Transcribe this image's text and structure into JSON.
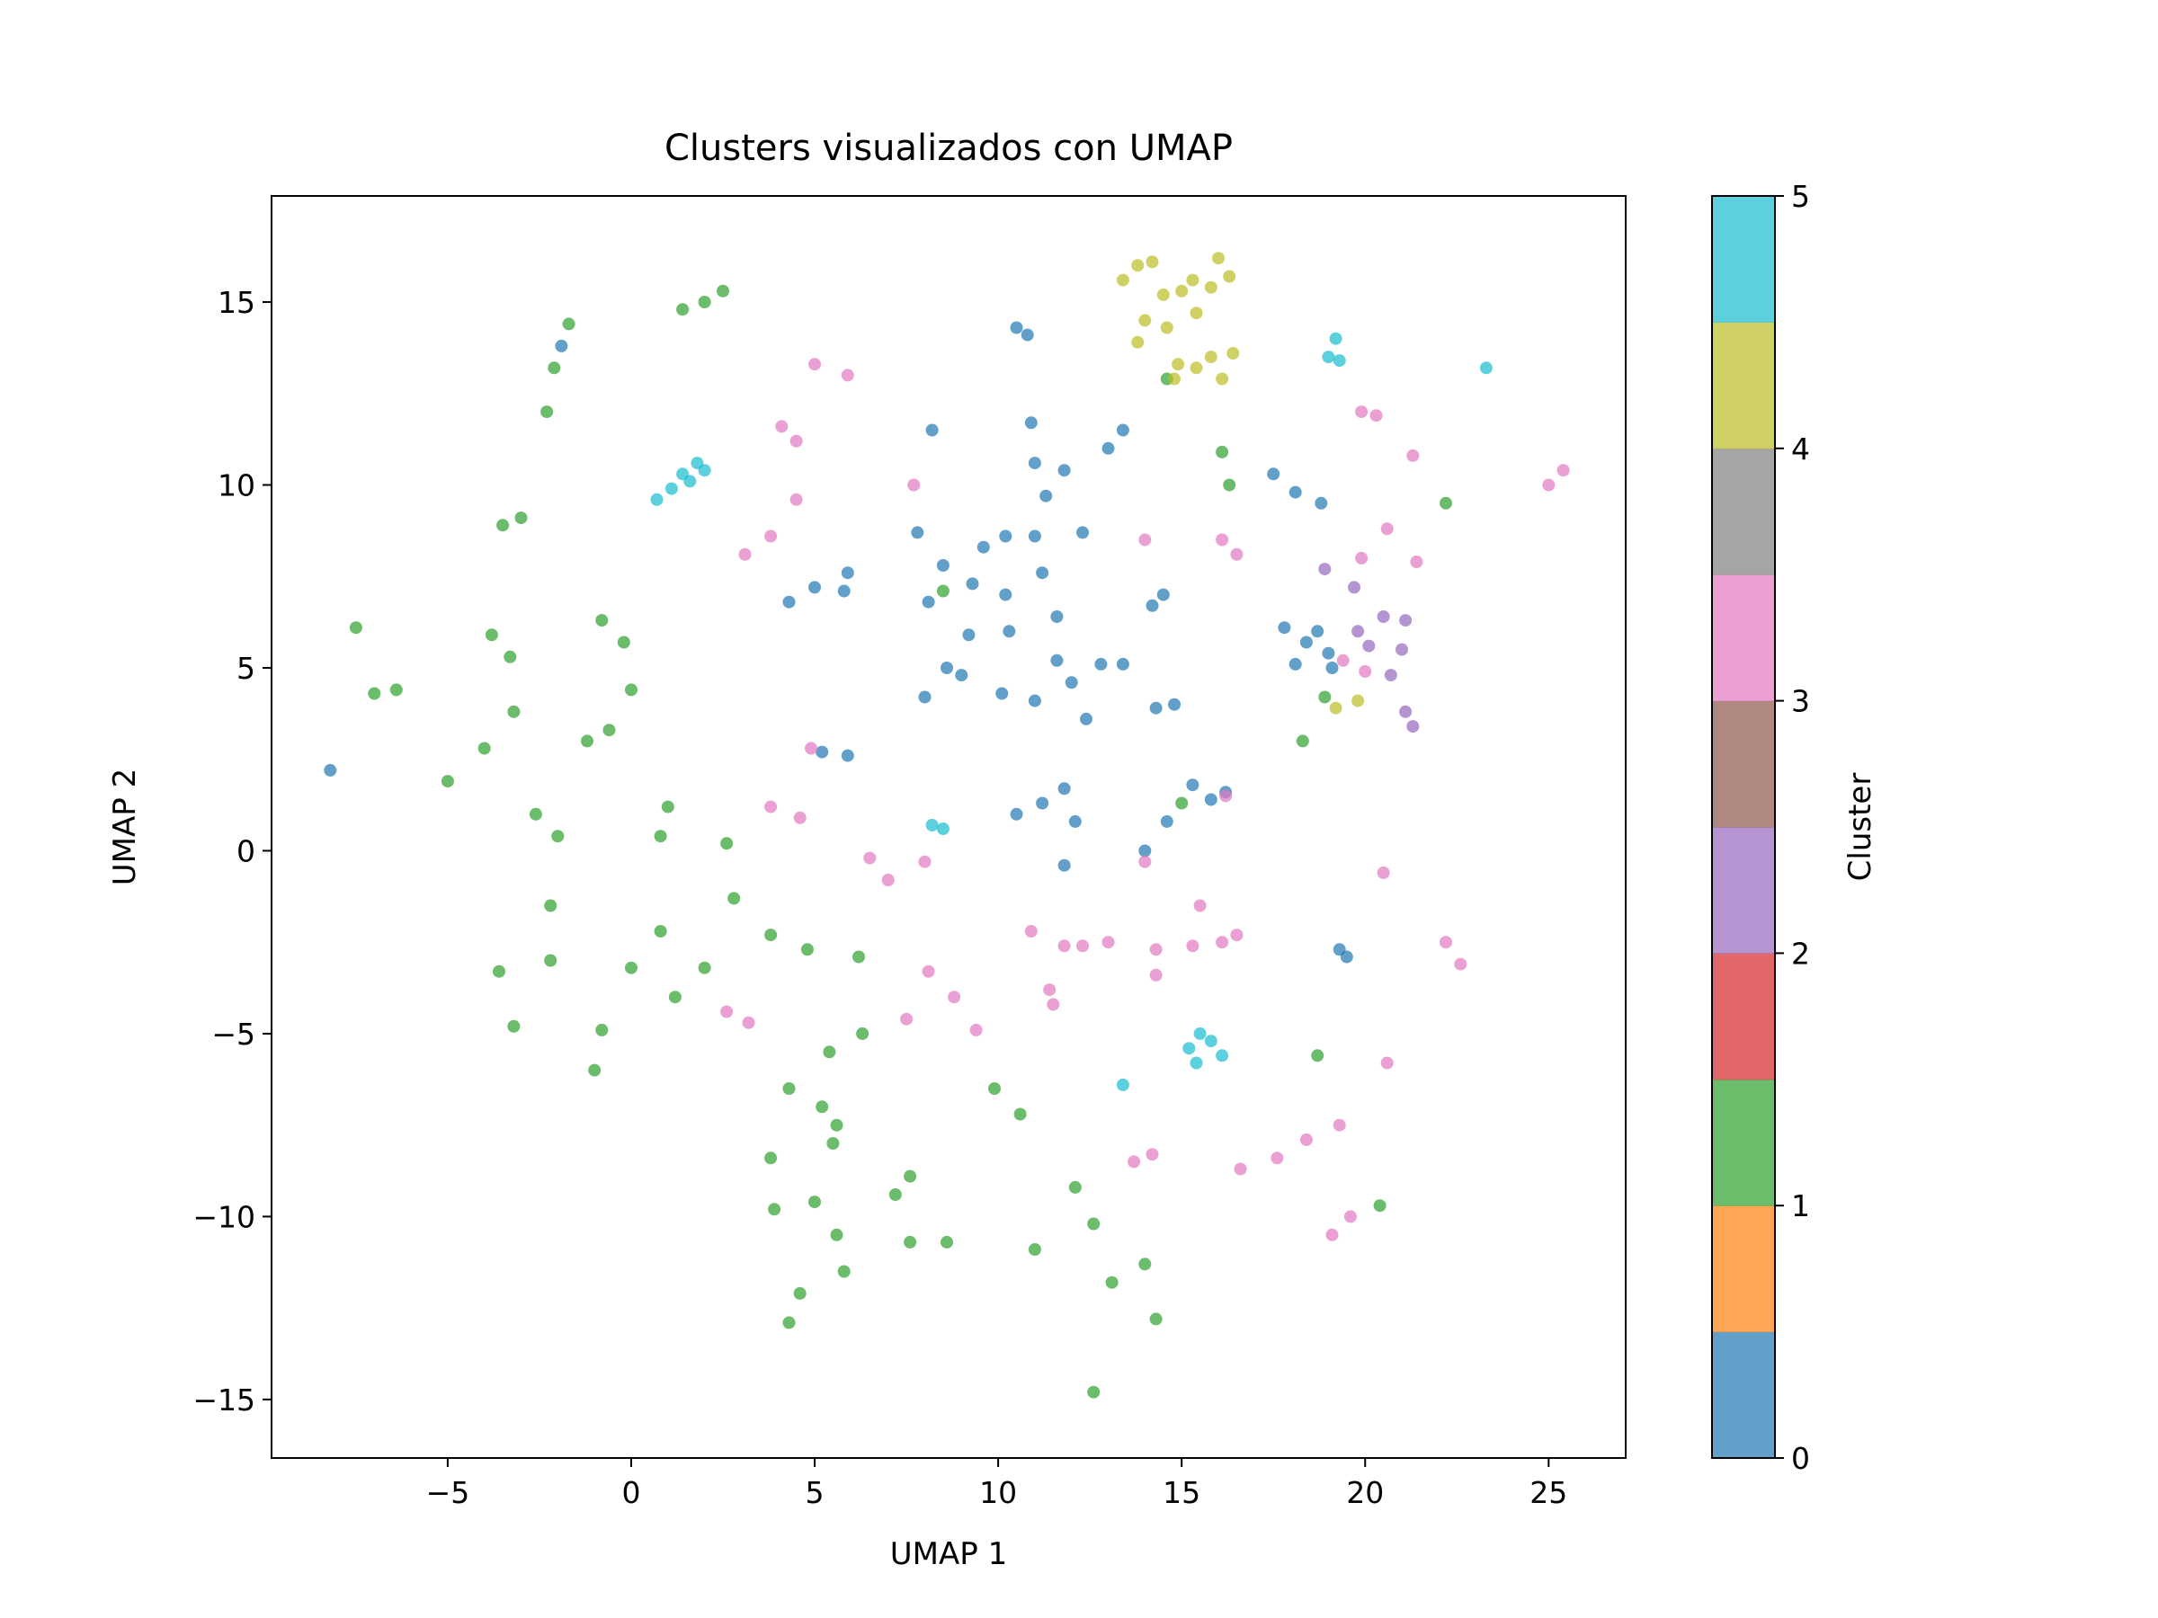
{
  "chart_data": {
    "type": "scatter",
    "title": "Clusters visualizados con UMAP",
    "xlabel": "UMAP 1",
    "ylabel": "UMAP 2",
    "xlim": [
      -9.8,
      27.1
    ],
    "ylim": [
      -16.6,
      17.9
    ],
    "xticks": [
      -5,
      0,
      5,
      10,
      15,
      20,
      25
    ],
    "yticks": [
      -15,
      -10,
      -5,
      0,
      5,
      10,
      15
    ],
    "xtick_labels": [
      "−5",
      "0",
      "5",
      "10",
      "15",
      "20",
      "25"
    ],
    "ytick_labels": [
      "−15",
      "−10",
      "−5",
      "0",
      "5",
      "10",
      "15"
    ],
    "grid": false,
    "point_alpha": 0.7,
    "colorbar": {
      "label": "Cluster",
      "range": [
        0,
        5
      ],
      "ticks": [
        0,
        1,
        2,
        3,
        4,
        5
      ],
      "tick_labels": [
        "0",
        "1",
        "2",
        "3",
        "4",
        "5"
      ],
      "colors": [
        "#1f77b4",
        "#ff7f0e",
        "#2ca02c",
        "#d62728",
        "#9467bd",
        "#8c564b",
        "#e377c2",
        "#7f7f7f",
        "#bcbd22",
        "#17becf"
      ]
    },
    "series": [
      {
        "cluster": 0,
        "color": "#1f77b4",
        "values": [
          [
            -8.2,
            2.2
          ],
          [
            -1.9,
            13.8
          ],
          [
            8.0,
            4.2
          ],
          [
            8.6,
            5.0
          ],
          [
            9.2,
            5.9
          ],
          [
            8.1,
            6.8
          ],
          [
            8.5,
            7.8
          ],
          [
            9.6,
            8.3
          ],
          [
            10.2,
            8.6
          ],
          [
            11.0,
            8.6
          ],
          [
            12.3,
            8.7
          ],
          [
            11.2,
            7.6
          ],
          [
            11.6,
            6.4
          ],
          [
            10.3,
            6.0
          ],
          [
            9.0,
            4.8
          ],
          [
            10.2,
            7.0
          ],
          [
            9.3,
            7.3
          ],
          [
            11.3,
            9.7
          ],
          [
            11.0,
            10.6
          ],
          [
            10.9,
            11.7
          ],
          [
            11.8,
            10.4
          ],
          [
            13.0,
            11.0
          ],
          [
            13.4,
            11.5
          ],
          [
            8.2,
            11.5
          ],
          [
            7.8,
            8.7
          ],
          [
            10.5,
            14.3
          ],
          [
            10.8,
            14.1
          ],
          [
            4.3,
            6.8
          ],
          [
            5.0,
            7.2
          ],
          [
            5.8,
            7.1
          ],
          [
            5.9,
            7.6
          ],
          [
            10.1,
            4.3
          ],
          [
            11.0,
            4.1
          ],
          [
            11.6,
            5.2
          ],
          [
            12.0,
            4.6
          ],
          [
            12.4,
            3.6
          ],
          [
            12.8,
            5.1
          ],
          [
            13.4,
            5.1
          ],
          [
            14.2,
            6.7
          ],
          [
            14.5,
            7.0
          ],
          [
            14.3,
            3.9
          ],
          [
            14.8,
            4.0
          ],
          [
            10.5,
            1.0
          ],
          [
            11.2,
            1.3
          ],
          [
            11.8,
            1.7
          ],
          [
            12.1,
            0.8
          ],
          [
            11.8,
            -0.4
          ],
          [
            5.2,
            2.7
          ],
          [
            5.9,
            2.6
          ],
          [
            14.0,
            0.0
          ],
          [
            14.6,
            0.8
          ],
          [
            15.3,
            1.8
          ],
          [
            16.2,
            1.6
          ],
          [
            15.8,
            1.4
          ],
          [
            17.8,
            6.1
          ],
          [
            18.4,
            5.7
          ],
          [
            19.0,
            5.4
          ],
          [
            18.1,
            5.1
          ],
          [
            18.7,
            6.0
          ],
          [
            17.5,
            10.3
          ],
          [
            18.1,
            9.8
          ],
          [
            18.8,
            9.5
          ],
          [
            19.1,
            5.0
          ],
          [
            19.3,
            -2.7
          ],
          [
            19.5,
            -2.9
          ]
        ]
      },
      {
        "cluster": 1,
        "color": "#2ca02c",
        "values": [
          [
            1.4,
            14.8
          ],
          [
            2.0,
            15.0
          ],
          [
            2.5,
            15.3
          ],
          [
            -1.7,
            14.4
          ],
          [
            -2.1,
            13.2
          ],
          [
            -2.3,
            12.0
          ],
          [
            -3.5,
            8.9
          ],
          [
            -3.0,
            9.1
          ],
          [
            -7.5,
            6.1
          ],
          [
            -7.0,
            4.3
          ],
          [
            -6.4,
            4.4
          ],
          [
            -3.8,
            5.9
          ],
          [
            -3.3,
            5.3
          ],
          [
            -5.0,
            1.9
          ],
          [
            -4.0,
            2.8
          ],
          [
            -3.2,
            3.8
          ],
          [
            -2.6,
            1.0
          ],
          [
            -2.0,
            0.4
          ],
          [
            -0.8,
            6.3
          ],
          [
            -0.2,
            5.7
          ],
          [
            0.0,
            4.4
          ],
          [
            -1.2,
            3.0
          ],
          [
            -0.6,
            3.3
          ],
          [
            1.0,
            1.2
          ],
          [
            0.8,
            0.4
          ],
          [
            2.6,
            0.2
          ],
          [
            2.8,
            -1.3
          ],
          [
            -2.2,
            -1.5
          ],
          [
            -2.2,
            -3.0
          ],
          [
            -3.6,
            -3.3
          ],
          [
            -3.2,
            -4.8
          ],
          [
            0.8,
            -2.2
          ],
          [
            0.0,
            -3.2
          ],
          [
            -0.8,
            -4.9
          ],
          [
            -1.0,
            -6.0
          ],
          [
            1.2,
            -4.0
          ],
          [
            2.0,
            -3.2
          ],
          [
            3.8,
            -2.3
          ],
          [
            4.8,
            -2.7
          ],
          [
            6.2,
            -2.9
          ],
          [
            4.3,
            -6.5
          ],
          [
            5.4,
            -5.5
          ],
          [
            6.3,
            -5.0
          ],
          [
            5.2,
            -7.0
          ],
          [
            5.6,
            -7.5
          ],
          [
            5.5,
            -8.0
          ],
          [
            3.8,
            -8.4
          ],
          [
            5.0,
            -9.6
          ],
          [
            3.9,
            -9.8
          ],
          [
            5.6,
            -10.5
          ],
          [
            5.8,
            -11.5
          ],
          [
            7.2,
            -9.4
          ],
          [
            7.6,
            -8.9
          ],
          [
            7.6,
            -10.7
          ],
          [
            8.6,
            -10.7
          ],
          [
            4.6,
            -12.1
          ],
          [
            4.3,
            -12.9
          ],
          [
            9.9,
            -6.5
          ],
          [
            10.6,
            -7.2
          ],
          [
            11.0,
            -10.9
          ],
          [
            12.1,
            -9.2
          ],
          [
            12.6,
            -10.2
          ],
          [
            13.1,
            -11.8
          ],
          [
            14.0,
            -11.3
          ],
          [
            14.3,
            -12.8
          ],
          [
            12.6,
            -14.8
          ],
          [
            14.6,
            12.9
          ],
          [
            16.1,
            10.9
          ],
          [
            16.3,
            10.0
          ],
          [
            18.3,
            3.0
          ],
          [
            18.9,
            4.2
          ],
          [
            22.2,
            9.5
          ],
          [
            18.7,
            -5.6
          ],
          [
            20.4,
            -9.7
          ],
          [
            15.0,
            1.3
          ],
          [
            8.5,
            7.1
          ]
        ]
      },
      {
        "cluster": 2,
        "color": "#9467bd",
        "values": [
          [
            18.9,
            7.7
          ],
          [
            19.7,
            7.2
          ],
          [
            20.5,
            6.4
          ],
          [
            20.1,
            5.6
          ],
          [
            21.0,
            5.5
          ],
          [
            20.7,
            4.8
          ],
          [
            21.1,
            3.8
          ],
          [
            21.3,
            3.4
          ],
          [
            19.8,
            6.0
          ],
          [
            21.1,
            6.3
          ]
        ]
      },
      {
        "cluster": 3,
        "color": "#e377c2",
        "values": [
          [
            5.0,
            13.3
          ],
          [
            5.9,
            13.0
          ],
          [
            4.1,
            11.6
          ],
          [
            4.5,
            11.2
          ],
          [
            3.1,
            8.1
          ],
          [
            3.8,
            8.6
          ],
          [
            4.5,
            9.6
          ],
          [
            7.7,
            10.0
          ],
          [
            3.8,
            1.2
          ],
          [
            4.6,
            0.9
          ],
          [
            4.9,
            2.8
          ],
          [
            6.5,
            -0.2
          ],
          [
            7.0,
            -0.8
          ],
          [
            8.0,
            -0.3
          ],
          [
            10.9,
            -2.2
          ],
          [
            11.8,
            -2.6
          ],
          [
            12.3,
            -2.6
          ],
          [
            11.4,
            -3.8
          ],
          [
            11.5,
            -4.2
          ],
          [
            13.0,
            -2.5
          ],
          [
            14.3,
            -2.7
          ],
          [
            14.3,
            -3.4
          ],
          [
            15.3,
            -2.6
          ],
          [
            16.1,
            -2.5
          ],
          [
            16.5,
            -2.3
          ],
          [
            15.5,
            -1.5
          ],
          [
            7.5,
            -4.6
          ],
          [
            8.1,
            -3.3
          ],
          [
            8.8,
            -4.0
          ],
          [
            9.4,
            -4.9
          ],
          [
            2.6,
            -4.4
          ],
          [
            3.2,
            -4.7
          ],
          [
            13.7,
            -8.5
          ],
          [
            14.2,
            -8.3
          ],
          [
            16.6,
            -8.7
          ],
          [
            17.6,
            -8.4
          ],
          [
            18.4,
            -7.9
          ],
          [
            19.3,
            -7.5
          ],
          [
            19.1,
            -10.5
          ],
          [
            19.6,
            -10.0
          ],
          [
            14.0,
            8.5
          ],
          [
            16.1,
            8.5
          ],
          [
            16.5,
            8.1
          ],
          [
            19.9,
            12.0
          ],
          [
            20.3,
            11.9
          ],
          [
            21.3,
            10.8
          ],
          [
            25.0,
            10.0
          ],
          [
            25.4,
            10.4
          ],
          [
            19.9,
            8.0
          ],
          [
            20.6,
            8.8
          ],
          [
            21.4,
            7.9
          ],
          [
            19.4,
            5.2
          ],
          [
            20.0,
            4.9
          ],
          [
            20.5,
            -0.6
          ],
          [
            20.6,
            -5.8
          ],
          [
            22.2,
            -2.5
          ],
          [
            22.6,
            -3.1
          ],
          [
            14.0,
            -0.3
          ],
          [
            16.2,
            1.5
          ]
        ]
      },
      {
        "cluster": 4,
        "color": "#bcbd22",
        "values": [
          [
            13.4,
            15.6
          ],
          [
            13.8,
            16.0
          ],
          [
            14.2,
            16.1
          ],
          [
            14.5,
            15.2
          ],
          [
            14.0,
            14.5
          ],
          [
            13.8,
            13.9
          ],
          [
            14.6,
            14.3
          ],
          [
            15.0,
            15.3
          ],
          [
            15.3,
            15.6
          ],
          [
            15.8,
            15.4
          ],
          [
            16.0,
            16.2
          ],
          [
            16.3,
            15.7
          ],
          [
            15.4,
            14.7
          ],
          [
            14.9,
            13.3
          ],
          [
            15.4,
            13.2
          ],
          [
            15.8,
            13.5
          ],
          [
            16.4,
            13.6
          ],
          [
            16.1,
            12.9
          ],
          [
            14.8,
            12.9
          ],
          [
            19.2,
            3.9
          ],
          [
            19.8,
            4.1
          ]
        ]
      },
      {
        "cluster": 5,
        "color": "#17becf",
        "values": [
          [
            0.7,
            9.6
          ],
          [
            1.1,
            9.9
          ],
          [
            1.4,
            10.3
          ],
          [
            1.8,
            10.6
          ],
          [
            2.0,
            10.4
          ],
          [
            1.6,
            10.1
          ],
          [
            19.2,
            14.0
          ],
          [
            19.0,
            13.5
          ],
          [
            19.3,
            13.4
          ],
          [
            23.3,
            13.2
          ],
          [
            8.2,
            0.7
          ],
          [
            8.5,
            0.6
          ],
          [
            15.2,
            -5.4
          ],
          [
            15.4,
            -5.8
          ],
          [
            15.8,
            -5.2
          ],
          [
            16.1,
            -5.6
          ],
          [
            15.5,
            -5.0
          ],
          [
            13.4,
            -6.4
          ]
        ]
      }
    ]
  }
}
